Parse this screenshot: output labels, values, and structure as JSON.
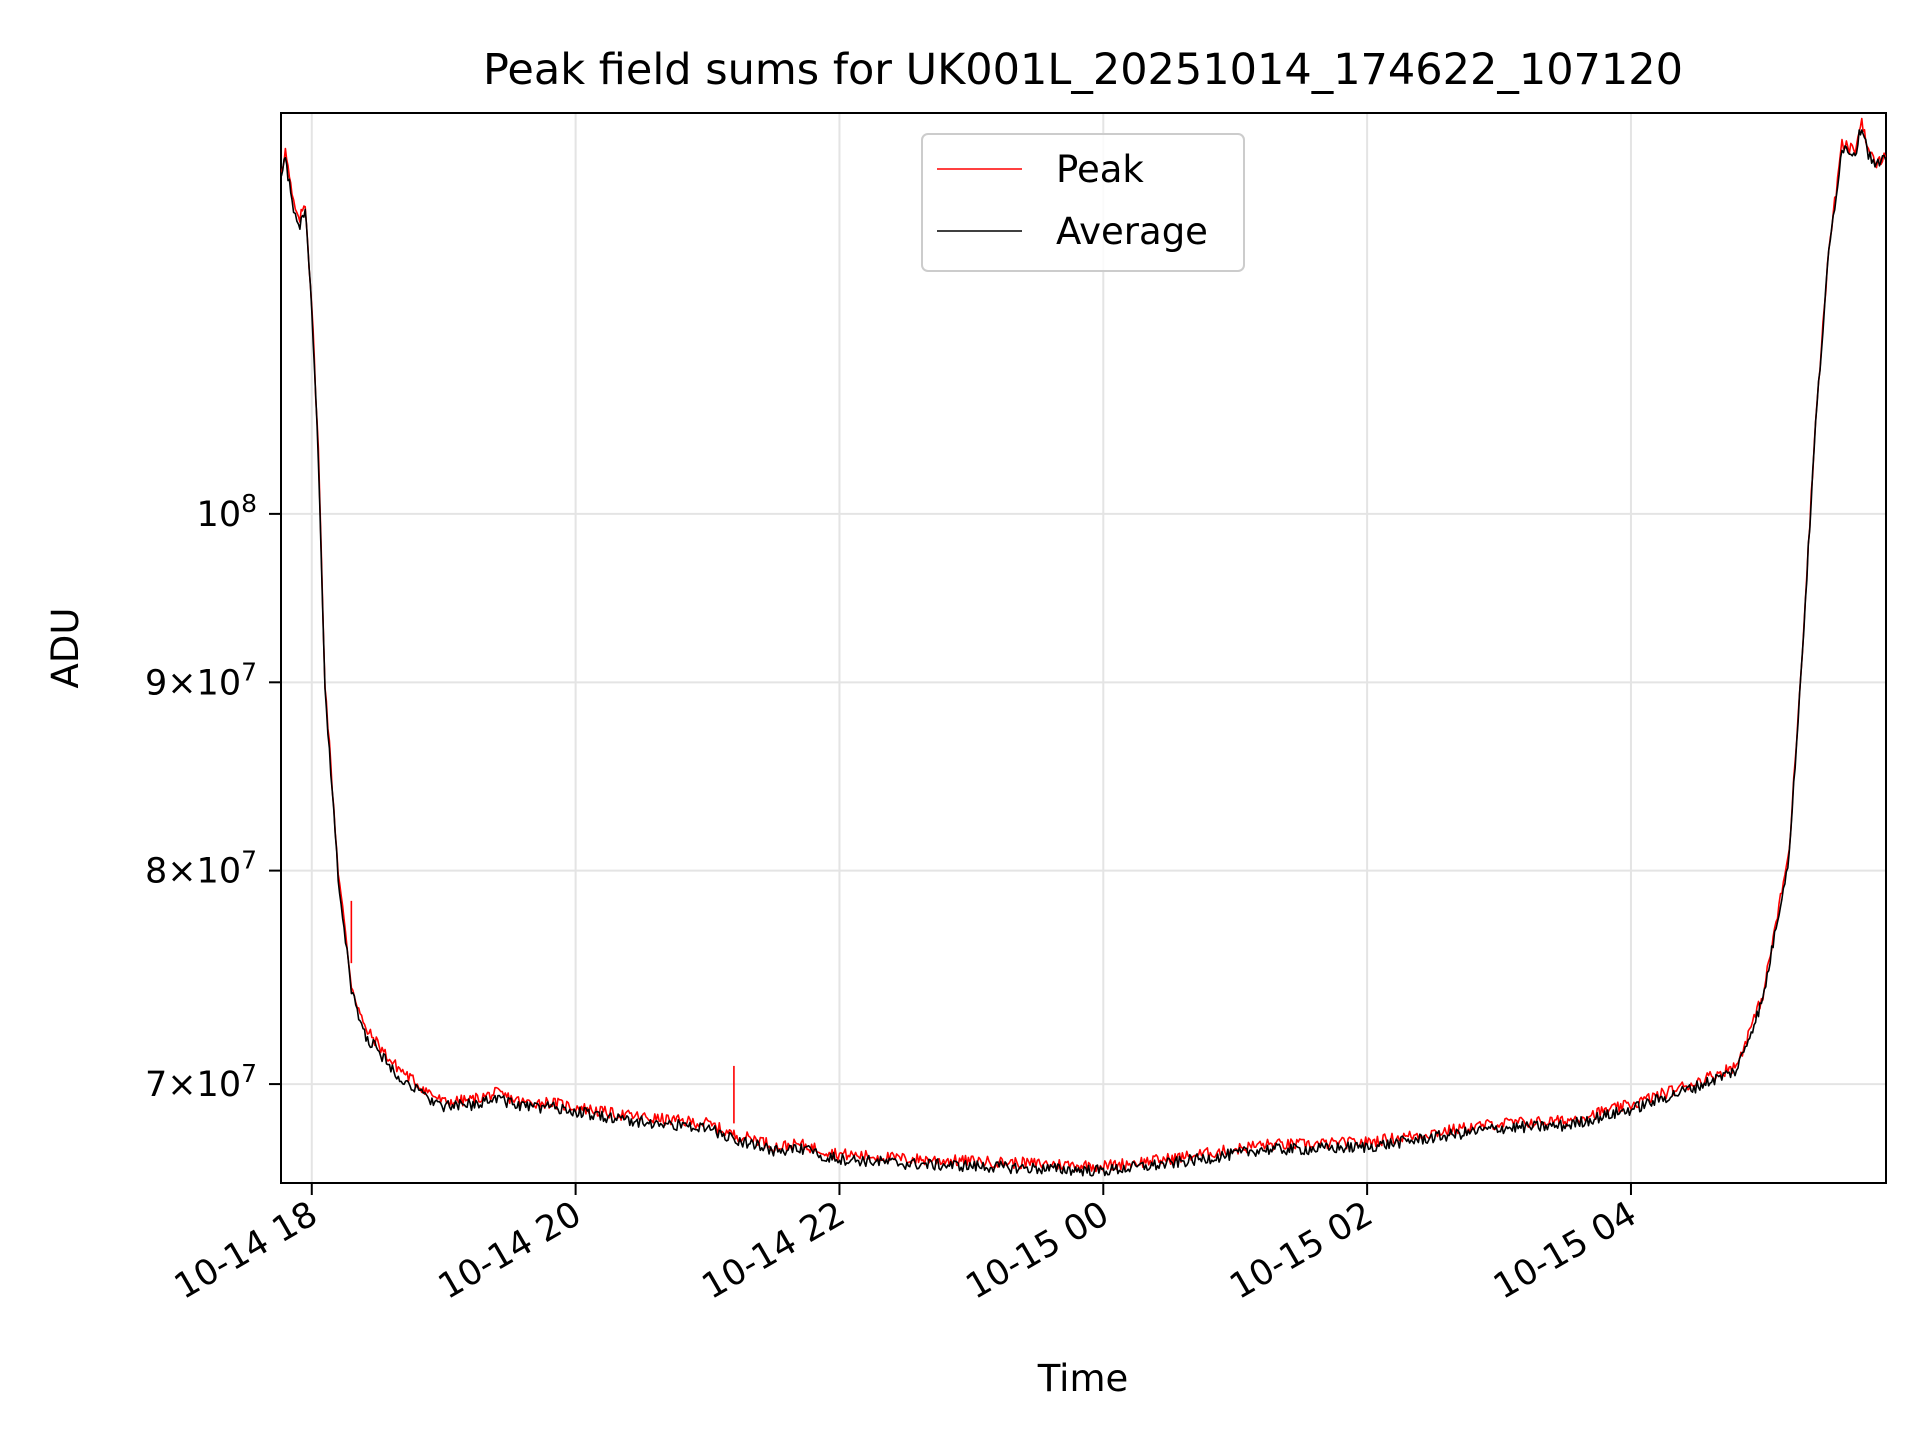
{
  "chart_data": {
    "type": "line",
    "title": "Peak field sums for UK001L_20251014_174622_107120",
    "xlabel": "Time",
    "ylabel": "ADU",
    "yscale": "log",
    "grid": true,
    "legend_position": "top-center",
    "xlim_hours": [
      -0.2333,
      11.9333
    ],
    "ylim": [
      65800000,
      128500000
    ],
    "x_ticks": [
      {
        "hours": 0,
        "label": "10-14 18"
      },
      {
        "hours": 2,
        "label": "10-14 20"
      },
      {
        "hours": 4,
        "label": "10-14 22"
      },
      {
        "hours": 6,
        "label": "10-15 00"
      },
      {
        "hours": 8,
        "label": "10-15 02"
      },
      {
        "hours": 10,
        "label": "10-15 04"
      }
    ],
    "y_ticks": [
      {
        "value": 70000000,
        "base": "7",
        "exp": "7",
        "sci": true
      },
      {
        "value": 80000000,
        "base": "8",
        "exp": "7",
        "sci": true
      },
      {
        "value": 90000000,
        "base": "9",
        "exp": "7",
        "sci": true
      },
      {
        "value": 100000000,
        "base": "10",
        "exp": "8",
        "sci": false
      }
    ],
    "x_hours": [
      -0.23,
      -0.2,
      -0.15,
      -0.1,
      -0.05,
      0.0,
      0.05,
      0.1,
      0.2,
      0.3,
      0.4,
      0.5,
      0.6,
      0.8,
      1.0,
      1.2,
      1.4,
      1.6,
      1.8,
      2.0,
      2.3,
      2.6,
      3.0,
      3.2,
      3.4,
      3.5,
      3.7,
      4.0,
      4.5,
      5.0,
      5.5,
      6.0,
      6.5,
      7.0,
      7.2,
      7.5,
      8.0,
      8.5,
      9.0,
      9.5,
      10.0,
      10.5,
      10.8,
      11.0,
      11.2,
      11.3,
      11.4,
      11.5,
      11.6,
      11.7,
      11.75,
      11.8,
      11.85,
      11.93
    ],
    "series": [
      {
        "name": "Peak",
        "color": "#ff0000",
        "values": [
          124000000,
          125500000,
          122000000,
          120000000,
          121500000,
          114000000,
          104000000,
          90000000,
          80000000,
          74500000,
          72500000,
          71800000,
          71000000,
          70000000,
          69200000,
          69300000,
          69600000,
          69200000,
          69200000,
          69000000,
          68700000,
          68500000,
          68300000,
          67800000,
          67600000,
          67300000,
          67400000,
          67000000,
          66800000,
          66700000,
          66600000,
          66500000,
          66800000,
          67200000,
          67400000,
          67400000,
          67500000,
          67900000,
          68300000,
          68400000,
          69100000,
          70100000,
          70800000,
          74000000,
          81000000,
          92000000,
          106000000,
          118000000,
          126000000,
          125500000,
          128000000,
          125500000,
          124500000,
          125000000
        ]
      },
      {
        "name": "Average",
        "color": "#000000",
        "values": [
          123800000,
          125000000,
          121500000,
          119500000,
          121000000,
          113500000,
          103500000,
          89500000,
          79700000,
          74200000,
          72200000,
          71500000,
          70700000,
          69700000,
          69000000,
          69100000,
          69400000,
          69000000,
          69000000,
          68800000,
          68500000,
          68300000,
          68100000,
          67600000,
          67400000,
          67100000,
          67200000,
          66800000,
          66600000,
          66500000,
          66400000,
          66300000,
          66600000,
          67000000,
          67200000,
          67200000,
          67300000,
          67700000,
          68100000,
          68200000,
          68900000,
          69900000,
          70600000,
          73800000,
          80800000,
          91800000,
          105800000,
          117800000,
          125800000,
          125300000,
          127600000,
          125300000,
          124300000,
          124800000
        ]
      }
    ],
    "spikes": [
      {
        "series": "Peak",
        "hours": 0.3,
        "from": 75500000,
        "to": 78500000
      },
      {
        "series": "Peak",
        "hours": 3.2,
        "from": 68300000,
        "to": 70800000
      }
    ]
  }
}
